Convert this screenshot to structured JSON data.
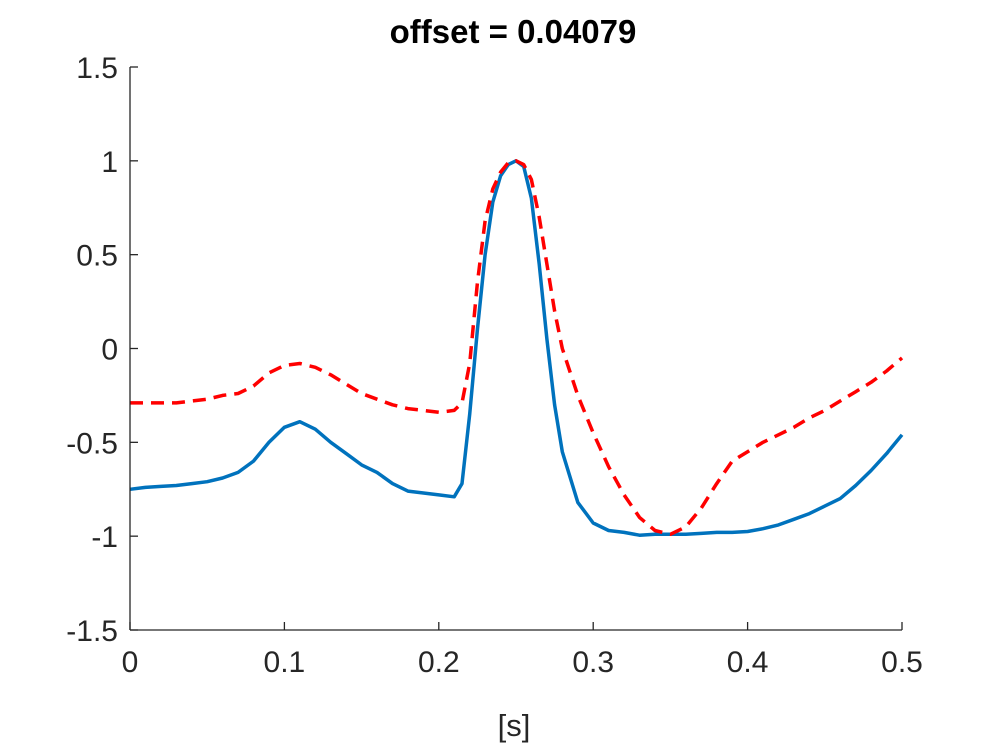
{
  "chart_data": {
    "type": "line",
    "title": "offset = 0.04079",
    "xlabel": "[s]",
    "ylabel": "",
    "xlim": [
      0,
      0.5
    ],
    "ylim": [
      -1.5,
      1.5
    ],
    "xticks": [
      0,
      0.1,
      0.2,
      0.3,
      0.4,
      0.5
    ],
    "xtick_labels": [
      "0",
      "0.1",
      "0.2",
      "0.3",
      "0.4",
      "0.5"
    ],
    "yticks": [
      1.5,
      1,
      0.5,
      0,
      -0.5,
      -1,
      -1.5
    ],
    "ytick_labels": [
      "1.5",
      "1",
      "0.5",
      "0",
      "-0.5",
      "-1",
      "-1.5"
    ],
    "grid": false,
    "series": [
      {
        "color": "#0072BD",
        "style": "solid",
        "x": [
          0,
          0.01,
          0.02,
          0.03,
          0.04,
          0.05,
          0.06,
          0.07,
          0.08,
          0.09,
          0.1,
          0.11,
          0.12,
          0.13,
          0.14,
          0.15,
          0.16,
          0.17,
          0.18,
          0.19,
          0.2,
          0.21,
          0.215,
          0.22,
          0.225,
          0.23,
          0.235,
          0.24,
          0.245,
          0.25,
          0.255,
          0.26,
          0.265,
          0.27,
          0.275,
          0.28,
          0.29,
          0.3,
          0.31,
          0.32,
          0.33,
          0.34,
          0.35,
          0.36,
          0.37,
          0.38,
          0.39,
          0.4,
          0.41,
          0.42,
          0.43,
          0.44,
          0.45,
          0.46,
          0.47,
          0.48,
          0.49,
          0.5
        ],
        "y": [
          -0.75,
          -0.74,
          -0.735,
          -0.73,
          -0.72,
          -0.71,
          -0.69,
          -0.66,
          -0.6,
          -0.5,
          -0.42,
          -0.39,
          -0.43,
          -0.5,
          -0.56,
          -0.62,
          -0.66,
          -0.72,
          -0.76,
          -0.77,
          -0.78,
          -0.79,
          -0.72,
          -0.35,
          0.1,
          0.5,
          0.78,
          0.92,
          0.98,
          1.0,
          0.97,
          0.8,
          0.45,
          0.05,
          -0.3,
          -0.55,
          -0.82,
          -0.93,
          -0.97,
          -0.98,
          -0.995,
          -0.99,
          -0.99,
          -0.99,
          -0.985,
          -0.98,
          -0.98,
          -0.975,
          -0.96,
          -0.94,
          -0.91,
          -0.88,
          -0.84,
          -0.8,
          -0.73,
          -0.65,
          -0.56,
          -0.46
        ]
      },
      {
        "color": "#FF0000",
        "style": "dashed",
        "x": [
          0,
          0.01,
          0.02,
          0.03,
          0.04,
          0.05,
          0.06,
          0.07,
          0.08,
          0.09,
          0.1,
          0.11,
          0.12,
          0.13,
          0.14,
          0.15,
          0.16,
          0.17,
          0.18,
          0.19,
          0.2,
          0.21,
          0.215,
          0.22,
          0.225,
          0.23,
          0.235,
          0.24,
          0.245,
          0.25,
          0.255,
          0.26,
          0.265,
          0.27,
          0.275,
          0.28,
          0.29,
          0.3,
          0.31,
          0.32,
          0.33,
          0.34,
          0.35,
          0.36,
          0.37,
          0.38,
          0.39,
          0.4,
          0.41,
          0.42,
          0.43,
          0.44,
          0.45,
          0.46,
          0.47,
          0.48,
          0.49,
          0.5
        ],
        "y": [
          -0.29,
          -0.29,
          -0.29,
          -0.29,
          -0.28,
          -0.27,
          -0.25,
          -0.24,
          -0.2,
          -0.13,
          -0.09,
          -0.08,
          -0.1,
          -0.14,
          -0.19,
          -0.24,
          -0.27,
          -0.3,
          -0.32,
          -0.33,
          -0.34,
          -0.33,
          -0.29,
          -0.08,
          0.35,
          0.68,
          0.85,
          0.94,
          0.99,
          1.0,
          0.98,
          0.9,
          0.7,
          0.45,
          0.2,
          0.0,
          -0.25,
          -0.45,
          -0.63,
          -0.78,
          -0.9,
          -0.97,
          -0.99,
          -0.95,
          -0.85,
          -0.72,
          -0.6,
          -0.55,
          -0.5,
          -0.46,
          -0.42,
          -0.37,
          -0.33,
          -0.28,
          -0.23,
          -0.18,
          -0.12,
          -0.05
        ]
      }
    ]
  }
}
